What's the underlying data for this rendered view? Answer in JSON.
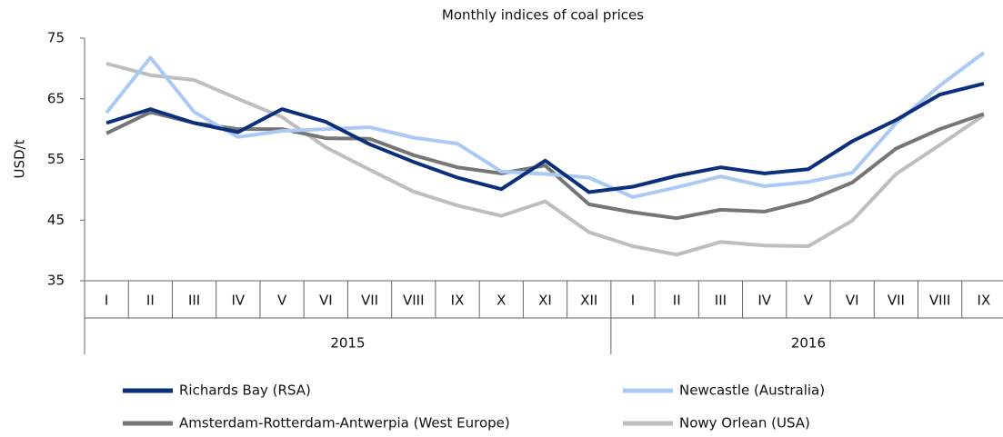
{
  "chart_data": {
    "type": "line",
    "title": "Monthly indices of coal prices",
    "y_label": "USD/t",
    "categories": [
      "I",
      "II",
      "III",
      "IV",
      "V",
      "VI",
      "VII",
      "VIII",
      "IX",
      "X",
      "XI",
      "XII",
      "I",
      "II",
      "III",
      "IV",
      "V",
      "VI",
      "VII",
      "VIII",
      "IX"
    ],
    "groups": [
      "2015",
      "2016"
    ],
    "ylim": [
      35,
      75
    ],
    "yticks": [
      35,
      45,
      55,
      65,
      75
    ],
    "grid": false,
    "series": [
      {
        "name": "Richards Bay (RSA)",
        "color": "#0b2f7c",
        "values": [
          61,
          63.3,
          61,
          59.5,
          63.3,
          61.2,
          57.5,
          54.6,
          52,
          50.1,
          54.8,
          49.6,
          50.5,
          52.3,
          53.7,
          52.7,
          53.4,
          58,
          61.5,
          65.7,
          67.5
        ]
      },
      {
        "name": "Newcastle (Australia)",
        "color": "#abc9f5",
        "values": [
          62.7,
          71.8,
          62.8,
          58.7,
          59.7,
          60,
          60.3,
          58.6,
          57.6,
          53,
          52.6,
          52,
          48.8,
          50.4,
          52.2,
          50.6,
          51.3,
          52.8,
          61,
          67.2,
          72.6
        ]
      },
      {
        "name": "Amsterdam-Rotterdam-Antwerpia (West Europe)",
        "color": "#767676",
        "values": [
          59.3,
          62.8,
          61,
          60,
          60,
          58.5,
          58.4,
          55.7,
          53.7,
          52.7,
          54,
          47.6,
          46.3,
          45.3,
          46.7,
          46.4,
          48.2,
          51.2,
          56.8,
          60,
          62.5
        ]
      },
      {
        "name": "Nowy Orlean (USA)",
        "color": "#bebebe",
        "values": [
          70.8,
          68.9,
          68.1,
          65,
          62,
          57,
          53.3,
          49.7,
          47.4,
          45.7,
          48.1,
          43,
          40.7,
          39.3,
          41.4,
          40.8,
          40.7,
          44.9,
          52.6,
          57.4,
          62.3
        ]
      }
    ]
  }
}
